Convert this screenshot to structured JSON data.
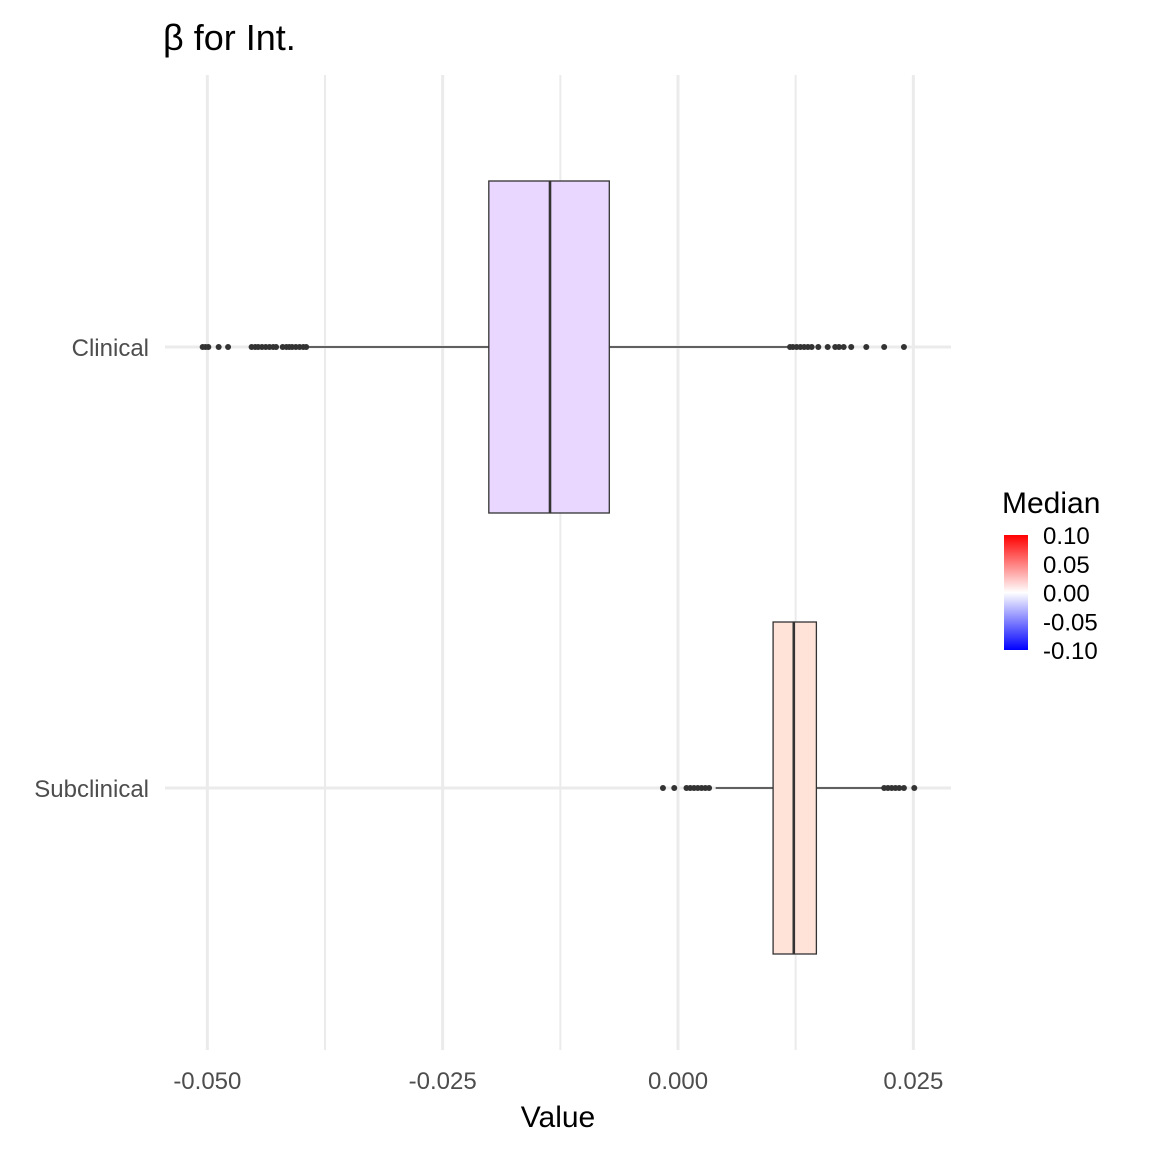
{
  "chart_data": {
    "type": "boxplot",
    "orientation": "horizontal",
    "title": "β for Int.",
    "xlabel": "Value",
    "ylabel": "",
    "xlim": [
      -0.0545,
      0.029
    ],
    "x_ticks": [
      -0.05,
      -0.025,
      0.0,
      0.025
    ],
    "x_tick_labels": [
      "-0.050",
      "-0.025",
      "0.000",
      "0.025"
    ],
    "x_minor_ticks": [
      -0.0375,
      -0.0125,
      0.0125
    ],
    "grid": true,
    "categories": [
      "Clinical",
      "Subclinical"
    ],
    "boxes": [
      {
        "category": "Clinical",
        "q1": -0.0201,
        "median": -0.0136,
        "q3": -0.0073,
        "whisker_low": -0.0392,
        "whisker_high": 0.0117,
        "outliers": [
          -0.0505,
          -0.0502,
          -0.0499,
          -0.0488,
          -0.0478,
          -0.0453,
          -0.0449,
          -0.0446,
          -0.0442,
          -0.0438,
          -0.0434,
          -0.043,
          -0.0427,
          -0.042,
          -0.0416,
          -0.0413,
          -0.041,
          -0.0406,
          -0.0402,
          -0.0398,
          -0.0395,
          0.0119,
          0.0122,
          0.0126,
          0.013,
          0.0134,
          0.0138,
          0.0142,
          0.0149,
          0.0159,
          0.0167,
          0.0171,
          0.0176,
          0.0184,
          0.02,
          0.0219,
          0.024
        ],
        "median_color_value": -0.0136,
        "fill": "#e9d7ff"
      },
      {
        "category": "Subclinical",
        "q1": 0.0101,
        "median": 0.0123,
        "q3": 0.0147,
        "whisker_low": 0.004,
        "whisker_high": 0.0217,
        "outliers": [
          -0.0016,
          -0.0004,
          0.0009,
          0.0013,
          0.0017,
          0.0021,
          0.0025,
          0.0029,
          0.0033,
          0.0219,
          0.0223,
          0.0227,
          0.0231,
          0.0235,
          0.024,
          0.0251
        ],
        "median_color_value": 0.0123,
        "fill": "#ffe3d9"
      }
    ],
    "legend": {
      "title": "Median",
      "position": "right",
      "type": "colorbar",
      "range": [
        -0.1,
        0.1
      ],
      "labels": [
        "0.10",
        "0.05",
        "0.00",
        "-0.05",
        "-0.10"
      ],
      "colors": {
        "low": "#0000ff",
        "mid": "#ffffff",
        "high": "#ff0000"
      }
    },
    "colors": {
      "grid_major": "#ebebeb",
      "grid_minor": "#ebebeb",
      "box_stroke": "#333333",
      "whisker": "#333333",
      "outlier": "#333333",
      "tick_text": "#4d4d4d"
    }
  }
}
